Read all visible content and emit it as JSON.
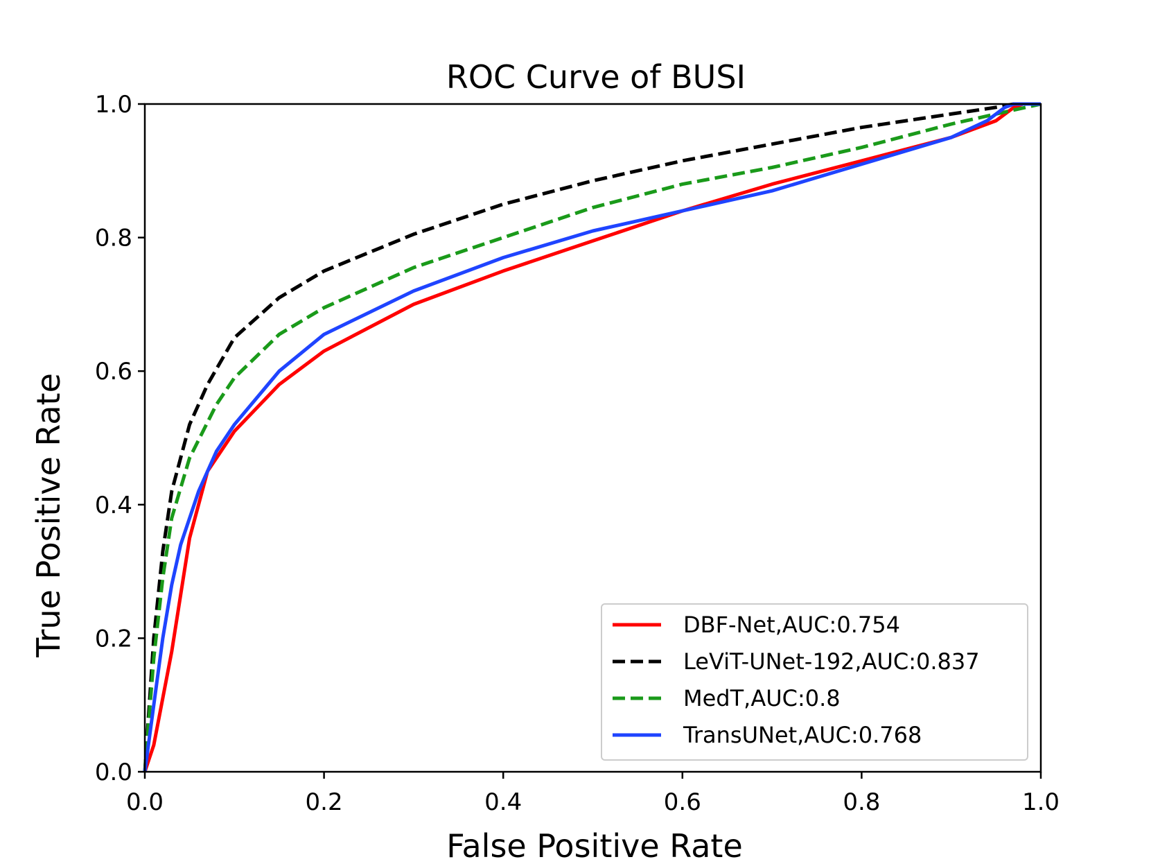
{
  "chart_data": {
    "type": "line",
    "title": "ROC Curve of BUSI",
    "xlabel": "False Positive Rate",
    "ylabel": "True Positive Rate",
    "xlim": [
      0.0,
      1.0
    ],
    "ylim": [
      0.0,
      1.0
    ],
    "xticks": [
      "0.0",
      "0.2",
      "0.4",
      "0.6",
      "0.8",
      "1.0"
    ],
    "yticks": [
      "0.0",
      "0.2",
      "0.4",
      "0.6",
      "0.8",
      "1.0"
    ],
    "grid": false,
    "legend_position": "lower-right",
    "series": [
      {
        "name": "DBF-Net,AUC:0.754",
        "color": "#ff0000",
        "dash": "solid",
        "x": [
          0.0,
          0.01,
          0.03,
          0.05,
          0.07,
          0.1,
          0.15,
          0.2,
          0.3,
          0.4,
          0.5,
          0.6,
          0.7,
          0.8,
          0.9,
          0.95,
          0.97,
          0.98,
          1.0
        ],
        "y": [
          0.0,
          0.04,
          0.18,
          0.35,
          0.45,
          0.51,
          0.58,
          0.63,
          0.7,
          0.75,
          0.795,
          0.84,
          0.88,
          0.915,
          0.95,
          0.975,
          0.995,
          1.0,
          1.0
        ]
      },
      {
        "name": "LeViT-UNet-192,AUC:0.837",
        "color": "#000000",
        "dash": "dashed",
        "x": [
          0.0,
          0.01,
          0.02,
          0.03,
          0.05,
          0.07,
          0.1,
          0.15,
          0.2,
          0.3,
          0.4,
          0.5,
          0.6,
          0.7,
          0.8,
          0.9,
          0.95,
          0.97,
          1.0
        ],
        "y": [
          0.0,
          0.2,
          0.33,
          0.42,
          0.52,
          0.58,
          0.65,
          0.71,
          0.75,
          0.805,
          0.85,
          0.885,
          0.915,
          0.94,
          0.965,
          0.985,
          0.995,
          1.0,
          1.0
        ]
      },
      {
        "name": "MedT,AUC:0.8",
        "color": "#1a9a1a",
        "dash": "dashed",
        "x": [
          0.0,
          0.01,
          0.02,
          0.03,
          0.05,
          0.08,
          0.1,
          0.15,
          0.2,
          0.3,
          0.4,
          0.5,
          0.6,
          0.7,
          0.8,
          0.9,
          0.95,
          1.0
        ],
        "y": [
          0.0,
          0.17,
          0.29,
          0.38,
          0.47,
          0.55,
          0.59,
          0.655,
          0.695,
          0.755,
          0.8,
          0.845,
          0.88,
          0.905,
          0.935,
          0.97,
          0.985,
          1.0
        ]
      },
      {
        "name": "TransUNet,AUC:0.768",
        "color": "#1f44ff",
        "dash": "solid",
        "x": [
          0.0,
          0.01,
          0.02,
          0.03,
          0.04,
          0.06,
          0.08,
          0.1,
          0.15,
          0.2,
          0.3,
          0.4,
          0.5,
          0.6,
          0.7,
          0.8,
          0.9,
          0.94,
          0.96,
          0.97,
          1.0
        ],
        "y": [
          0.0,
          0.1,
          0.2,
          0.28,
          0.34,
          0.42,
          0.48,
          0.52,
          0.6,
          0.655,
          0.72,
          0.77,
          0.81,
          0.84,
          0.87,
          0.91,
          0.95,
          0.975,
          0.995,
          1.0,
          1.0
        ]
      }
    ]
  }
}
